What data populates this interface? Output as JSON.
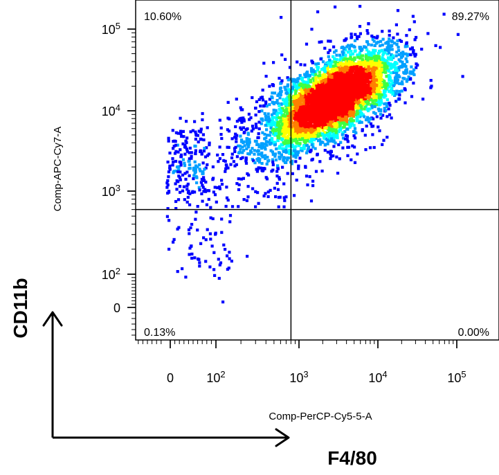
{
  "chart_data": {
    "type": "scatter",
    "plot_style": "flow cytometry density dot plot",
    "xlabel": "Comp-PerCP-Cy5-5-A",
    "ylabel": "Comp-APC-Cy7-A",
    "x_scale": "biexponential",
    "y_scale": "biexponential",
    "x_ticks": [
      {
        "base": "0",
        "exp": ""
      },
      {
        "base": "10",
        "exp": "2"
      },
      {
        "base": "10",
        "exp": "3"
      },
      {
        "base": "10",
        "exp": "4"
      },
      {
        "base": "10",
        "exp": "5"
      }
    ],
    "y_ticks": [
      {
        "base": "0",
        "exp": ""
      },
      {
        "base": "10",
        "exp": "2"
      },
      {
        "base": "10",
        "exp": "3"
      },
      {
        "base": "10",
        "exp": "4"
      },
      {
        "base": "10",
        "exp": "5"
      }
    ],
    "gate": {
      "x": 800,
      "y": 600
    },
    "quadrants": {
      "upper_left": "10.60%",
      "upper_right": "89.27%",
      "lower_left": "0.13%",
      "lower_right": "0.00%"
    },
    "density_colors": [
      "#0000ff",
      "#00a0ff",
      "#00ffff",
      "#40ff40",
      "#ffff00",
      "#ff8000",
      "#ff0000"
    ],
    "grid": false,
    "legend": "none"
  },
  "markers": {
    "y_marker": "CD11b",
    "x_marker": "F4/80"
  }
}
